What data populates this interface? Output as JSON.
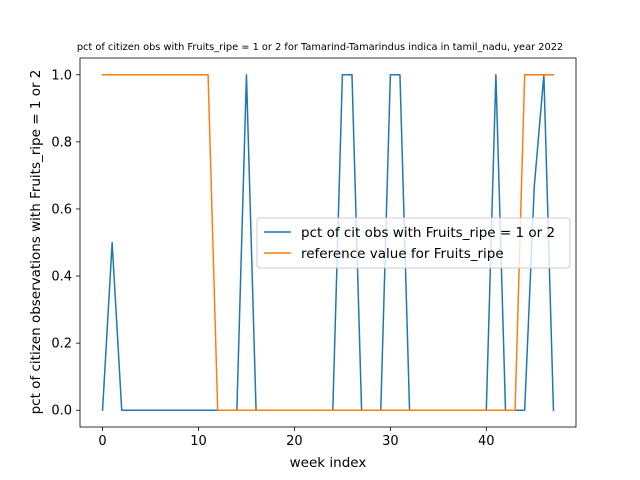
{
  "chart_data": {
    "type": "line",
    "title": "pct of citizen obs with Fruits_ripe = 1 or 2 for Tamarind-Tamarindus indica in tamil_nadu, year 2022",
    "xlabel": "week index",
    "ylabel": "pct of citizen observations with Fruits_ripe = 1 or 2",
    "xlim": [
      -2.35,
      49.35
    ],
    "ylim": [
      -0.05,
      1.05
    ],
    "xticks": [
      0,
      10,
      20,
      30,
      40
    ],
    "yticks": [
      0.0,
      0.2,
      0.4,
      0.6,
      0.8,
      1.0
    ],
    "xtick_labels": [
      "0",
      "10",
      "20",
      "30",
      "40"
    ],
    "ytick_labels": [
      "0.0",
      "0.2",
      "0.4",
      "0.6",
      "0.8",
      "1.0"
    ],
    "grid": false,
    "legend_position": "center-right",
    "series": [
      {
        "name": "pct of cit obs with Fruits_ripe = 1 or 2",
        "color": "#1f77b4",
        "x": [
          0,
          1,
          2,
          3,
          4,
          5,
          6,
          7,
          8,
          9,
          10,
          11,
          12,
          13,
          14,
          15,
          16,
          17,
          18,
          19,
          20,
          21,
          22,
          23,
          24,
          25,
          26,
          27,
          28,
          29,
          30,
          31,
          32,
          33,
          34,
          35,
          36,
          37,
          38,
          39,
          40,
          41,
          42,
          43,
          44,
          45,
          46,
          47
        ],
        "y": [
          0,
          0.5,
          0,
          0,
          0,
          0,
          0,
          0,
          0,
          0,
          0,
          0,
          0,
          0,
          0,
          1,
          0,
          0,
          0,
          0,
          0,
          0,
          0,
          0,
          0,
          1,
          1,
          0,
          0,
          0,
          1,
          1,
          0,
          0,
          0,
          0,
          0,
          0,
          0,
          0,
          0,
          1,
          0,
          0,
          0,
          0.667,
          1,
          0
        ]
      },
      {
        "name": "reference value for Fruits_ripe",
        "color": "#ff7f0e",
        "x": [
          0,
          1,
          2,
          3,
          4,
          5,
          6,
          7,
          8,
          9,
          10,
          11,
          12,
          13,
          14,
          15,
          16,
          17,
          18,
          19,
          20,
          21,
          22,
          23,
          24,
          25,
          26,
          27,
          28,
          29,
          30,
          31,
          32,
          33,
          34,
          35,
          36,
          37,
          38,
          39,
          40,
          41,
          42,
          43,
          44,
          45,
          46,
          47
        ],
        "y": [
          1,
          1,
          1,
          1,
          1,
          1,
          1,
          1,
          1,
          1,
          1,
          1,
          0,
          0,
          0,
          0,
          0,
          0,
          0,
          0,
          0,
          0,
          0,
          0,
          0,
          0,
          0,
          0,
          0,
          0,
          0,
          0,
          0,
          0,
          0,
          0,
          0,
          0,
          0,
          0,
          0,
          0,
          0,
          0,
          1,
          1,
          1,
          1
        ]
      }
    ]
  }
}
